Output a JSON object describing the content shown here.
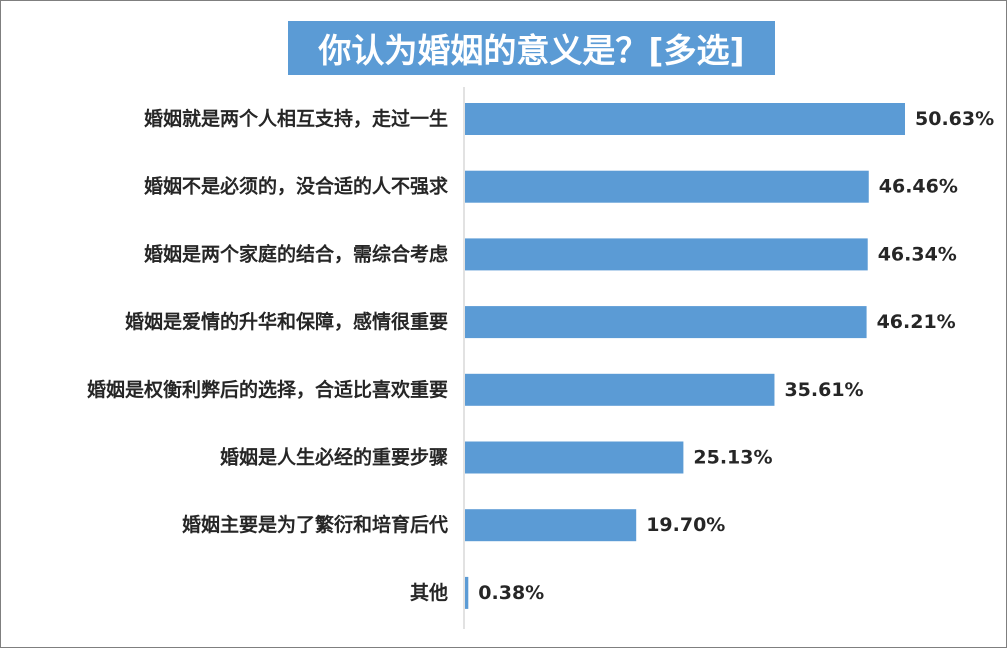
{
  "chart_data": {
    "type": "bar",
    "orientation": "horizontal",
    "title": "你认为婚姻的意义是？[多选]",
    "categories": [
      "婚姻就是两个人相互支持，走过一生",
      "婚姻不是必须的，没合适的人不强求",
      "婚姻是两个家庭的结合，需综合考虑",
      "婚姻是爱情的升华和保障，感情很重要",
      "婚姻是权衡利弊后的选择，合适比喜欢重要",
      "婚姻是人生必经的重要步骤",
      "婚姻主要是为了繁衍和培育后代",
      "其他"
    ],
    "values": [
      50.63,
      46.46,
      46.34,
      46.21,
      35.61,
      25.13,
      19.7,
      0.38
    ],
    "value_labels": [
      "50.63%",
      "46.46%",
      "46.34%",
      "46.21%",
      "35.61%",
      "25.13%",
      "19.70%",
      "0.38%"
    ],
    "xlim": [
      0,
      55
    ],
    "grid": false,
    "legend": "none",
    "colors": {
      "bar": "#5b9bd5",
      "title_bg": "#5b9bd5",
      "title_text": "#ffffff",
      "axis": "#d9d9d9",
      "text": "#262626"
    }
  }
}
